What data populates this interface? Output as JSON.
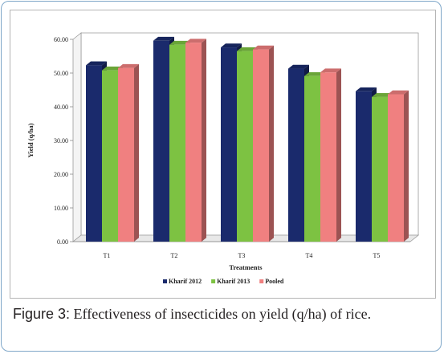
{
  "caption": {
    "label": "Figure 3:",
    "text": " Effectiveness of insecticides on yield (q/ha) of rice."
  },
  "chart_data": {
    "type": "bar",
    "title": "",
    "xlabel": "Treatments",
    "ylabel": "Yield (q/ha)",
    "ylim": [
      0,
      60
    ],
    "yticks": [
      "0.00",
      "10.00",
      "20.00",
      "30.00",
      "40.00",
      "50.00",
      "60.00"
    ],
    "categories": [
      "T1",
      "T2",
      "T3",
      "T4",
      "T5"
    ],
    "series": [
      {
        "name": "Kharif 2012",
        "values": [
          52.3,
          59.6,
          57.6,
          51.3,
          44.6
        ],
        "color": "#1a2a6c"
      },
      {
        "name": "Kharif 2013",
        "values": [
          50.8,
          58.4,
          56.5,
          49.1,
          42.9
        ],
        "color": "#7dc242"
      },
      {
        "name": "Pooled",
        "values": [
          51.5,
          59.0,
          57.0,
          50.2,
          43.7
        ],
        "color": "#f08080"
      }
    ],
    "grid": false,
    "legend_position": "bottom",
    "style": "3d-clustered-column"
  }
}
